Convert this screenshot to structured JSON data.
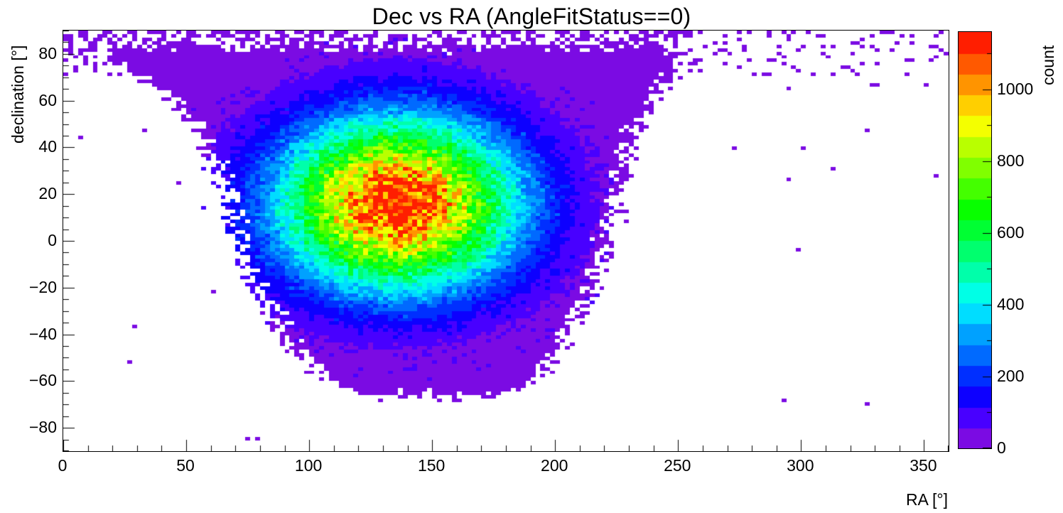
{
  "page": {
    "background": "#ffffff",
    "axis_color": "#000000"
  },
  "chart_data": {
    "type": "heatmap",
    "title": "Dec vs RA (AngleFitStatus==0)",
    "xlabel": "RA [°]",
    "ylabel": "declination [°]",
    "zlabel": "count",
    "x_range": [
      0,
      360
    ],
    "y_range": [
      -90,
      90
    ],
    "z_range": [
      0,
      1160
    ],
    "x_ticks": [
      0,
      50,
      100,
      150,
      200,
      250,
      300,
      350
    ],
    "y_ticks": [
      -80,
      -60,
      -40,
      -20,
      0,
      20,
      40,
      60,
      80
    ],
    "z_ticks": [
      0,
      200,
      400,
      600,
      800,
      1000
    ],
    "x_minor_step": 10,
    "y_minor_step": 5,
    "z_minor_step": 100,
    "grid": false,
    "legend_position": "right-colorbar",
    "bins": {
      "nx": 180,
      "ny": 120,
      "x_width_deg": 2,
      "y_width_deg": 1.5
    },
    "signal": {
      "model": "gaussian2d",
      "amplitude": 1150,
      "center_ra": 136,
      "center_dec": 16,
      "sigma_ra": 33,
      "sigma_dec": 25,
      "peak_count_approx": 1150
    },
    "background": {
      "description": "flat low-count acceptance region with speckled edges, sparse polar band above dec 71 across all RA, cutoff below dec -69",
      "level_counts": [
        2,
        50
      ],
      "acceptance_dec_nodes": [
        -72,
        -60,
        -40,
        -20,
        0,
        20,
        40,
        60,
        68,
        75,
        82,
        90
      ],
      "acceptance_ra_left": [
        135,
        100,
        83,
        72,
        64,
        60,
        53,
        40,
        28,
        15,
        5,
        2
      ],
      "acceptance_ra_right": [
        165,
        198,
        212,
        221,
        228,
        232,
        236,
        246,
        252,
        256,
        260,
        262
      ],
      "edge_fade_deg": 14,
      "polar_band_dec_min": 71,
      "bottom_cutoff_dec": -69
    },
    "palette": [
      "#7B0BE3",
      "#4800FF",
      "#0D00FF",
      "#002FFF",
      "#006AFF",
      "#00A1FF",
      "#00DDFF",
      "#00FFE6",
      "#00FFAA",
      "#00FF6E",
      "#00FF33",
      "#08FF00",
      "#44FF00",
      "#80FF00",
      "#B9FF00",
      "#F4FF00",
      "#FFCF00",
      "#FF9400",
      "#FF5900",
      "#FF1E00"
    ],
    "random_seed": 42
  }
}
